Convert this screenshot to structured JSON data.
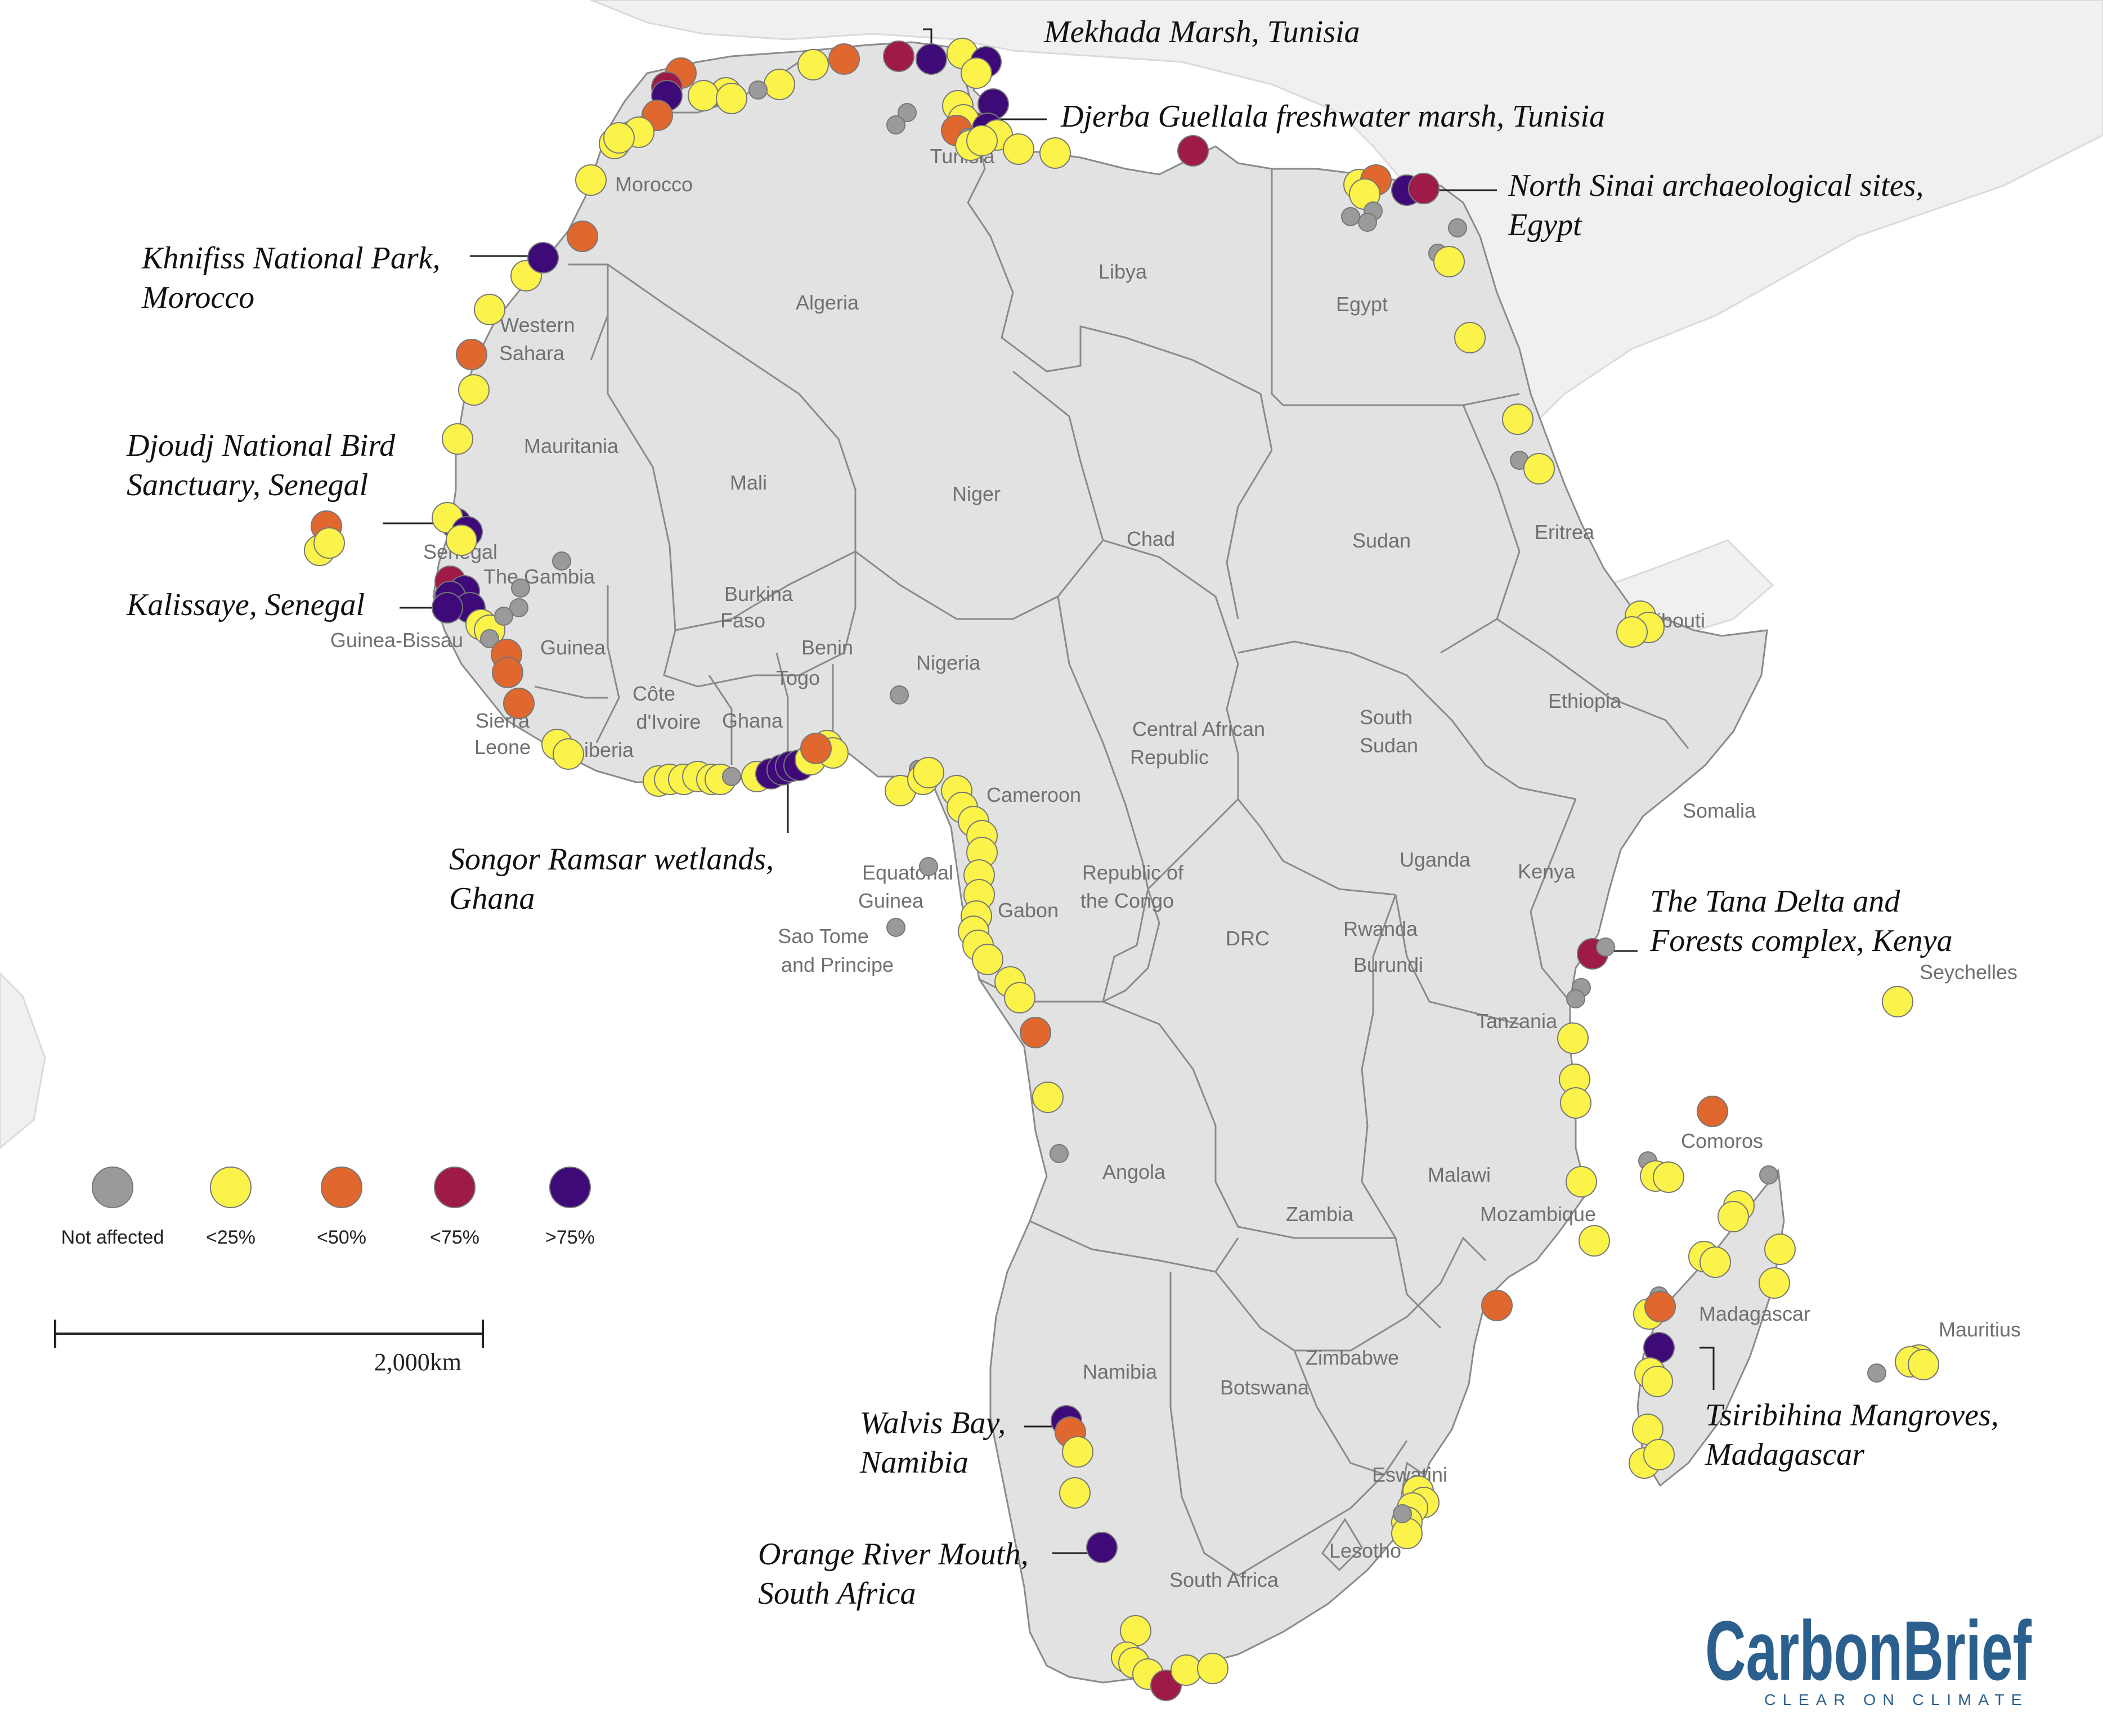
{
  "colors": {
    "land": "#e2e2e2",
    "border": "#8a8a8a",
    "background_land": "#f1f1f1",
    "not_affected": "#9a9a9a",
    "lt25": "#fbf34a",
    "lt50": "#e0672e",
    "lt75": "#9e1a48",
    "gt75": "#3e0a78",
    "logo": "#2b5f8e"
  },
  "legend": [
    {
      "key": "not_affected",
      "label": "Not affected"
    },
    {
      "key": "lt25",
      "label": "<25%"
    },
    {
      "key": "lt50",
      "label": "<50%"
    },
    {
      "key": "lt75",
      "label": "<75%"
    },
    {
      "key": "gt75",
      "label": ">75%"
    }
  ],
  "scale_bar": {
    "label": "2,000km"
  },
  "logo": {
    "name": "CarbonBrief",
    "tagline": "CLEAR ON CLIMATE"
  },
  "country_labels": [
    {
      "id": "morocco",
      "text": "Morocco"
    },
    {
      "id": "tunisia",
      "text": "Tunisia"
    },
    {
      "id": "algeria",
      "text": "Algeria"
    },
    {
      "id": "libya",
      "text": "Libya"
    },
    {
      "id": "egypt",
      "text": "Egypt"
    },
    {
      "id": "western-sahara-1",
      "text": "Western"
    },
    {
      "id": "western-sahara-2",
      "text": "Sahara"
    },
    {
      "id": "mauritania",
      "text": "Mauritania"
    },
    {
      "id": "mali",
      "text": "Mali"
    },
    {
      "id": "niger",
      "text": "Niger"
    },
    {
      "id": "chad",
      "text": "Chad"
    },
    {
      "id": "sudan",
      "text": "Sudan"
    },
    {
      "id": "eritrea",
      "text": "Eritrea"
    },
    {
      "id": "djibouti",
      "text": "Djibouti"
    },
    {
      "id": "senegal",
      "text": "Senegal"
    },
    {
      "id": "gambia",
      "text": "The Gambia"
    },
    {
      "id": "guinea-bissau",
      "text": "Guinea-Bissau"
    },
    {
      "id": "guinea",
      "text": "Guinea"
    },
    {
      "id": "sierra-leone-1",
      "text": "Sierra"
    },
    {
      "id": "sierra-leone-2",
      "text": "Leone"
    },
    {
      "id": "liberia",
      "text": "Liberia"
    },
    {
      "id": "cote-1",
      "text": "Côte"
    },
    {
      "id": "cote-2",
      "text": "d'Ivoire"
    },
    {
      "id": "burkina-1",
      "text": "Burkina"
    },
    {
      "id": "burkina-2",
      "text": "Faso"
    },
    {
      "id": "ghana",
      "text": "Ghana"
    },
    {
      "id": "togo",
      "text": "Togo"
    },
    {
      "id": "benin",
      "text": "Benin"
    },
    {
      "id": "nigeria",
      "text": "Nigeria"
    },
    {
      "id": "car-1",
      "text": "Central African"
    },
    {
      "id": "car-2",
      "text": "Republic"
    },
    {
      "id": "south-sudan-1",
      "text": "South"
    },
    {
      "id": "south-sudan-2",
      "text": "Sudan"
    },
    {
      "id": "ethiopia",
      "text": "Ethiopia"
    },
    {
      "id": "somalia",
      "text": "Somalia"
    },
    {
      "id": "cameroon",
      "text": "Cameroon"
    },
    {
      "id": "eq-guinea-1",
      "text": "Equatorial"
    },
    {
      "id": "eq-guinea-2",
      "text": "Guinea"
    },
    {
      "id": "stp-1",
      "text": "Sao Tome"
    },
    {
      "id": "stp-2",
      "text": "and Principe"
    },
    {
      "id": "gabon",
      "text": "Gabon"
    },
    {
      "id": "congo-1",
      "text": "Republic of"
    },
    {
      "id": "congo-2",
      "text": "the Congo"
    },
    {
      "id": "drc",
      "text": "DRC"
    },
    {
      "id": "uganda",
      "text": "Uganda"
    },
    {
      "id": "kenya",
      "text": "Kenya"
    },
    {
      "id": "rwanda",
      "text": "Rwanda"
    },
    {
      "id": "burundi",
      "text": "Burundi"
    },
    {
      "id": "tanzania",
      "text": "Tanzania"
    },
    {
      "id": "seychelles",
      "text": "Seychelles"
    },
    {
      "id": "comoros",
      "text": "Comoros"
    },
    {
      "id": "angola",
      "text": "Angola"
    },
    {
      "id": "zambia",
      "text": "Zambia"
    },
    {
      "id": "malawi",
      "text": "Malawi"
    },
    {
      "id": "mozambique",
      "text": "Mozambique"
    },
    {
      "id": "madagascar",
      "text": "Madagascar"
    },
    {
      "id": "mauritius",
      "text": "Mauritius"
    },
    {
      "id": "namibia",
      "text": "Namibia"
    },
    {
      "id": "botswana",
      "text": "Botswana"
    },
    {
      "id": "zimbabwe",
      "text": "Zimbabwe"
    },
    {
      "id": "eswatini",
      "text": "Eswatini"
    },
    {
      "id": "lesotho",
      "text": "Lesotho"
    },
    {
      "id": "south-africa",
      "text": "South Africa"
    }
  ],
  "site_labels": [
    {
      "id": "mekhada",
      "lines": [
        "Mekhada Marsh, Tunisia"
      ]
    },
    {
      "id": "djerba",
      "lines": [
        "Djerba Guellala freshwater marsh, Tunisia"
      ]
    },
    {
      "id": "north-sinai",
      "lines": [
        "North Sinai archaeological sites,",
        "Egypt"
      ]
    },
    {
      "id": "khnifiss",
      "lines": [
        "Khnifiss National Park,",
        "Morocco"
      ]
    },
    {
      "id": "djoudj",
      "lines": [
        "Djoudj National Bird",
        "Sanctuary, Senegal"
      ]
    },
    {
      "id": "kalissaye",
      "lines": [
        "Kalissaye, Senegal"
      ]
    },
    {
      "id": "songor",
      "lines": [
        "Songor Ramsar wetlands,",
        "Ghana"
      ]
    },
    {
      "id": "tana",
      "lines": [
        "The Tana Delta and",
        "Forests complex, Kenya"
      ]
    },
    {
      "id": "walvis",
      "lines": [
        "Walvis Bay,",
        "Namibia"
      ]
    },
    {
      "id": "orange",
      "lines": [
        "Orange River Mouth,",
        "South Africa"
      ]
    },
    {
      "id": "tsiribihina",
      "lines": [
        "Tsiribihina Mangroves,",
        "Madagascar"
      ]
    }
  ]
}
